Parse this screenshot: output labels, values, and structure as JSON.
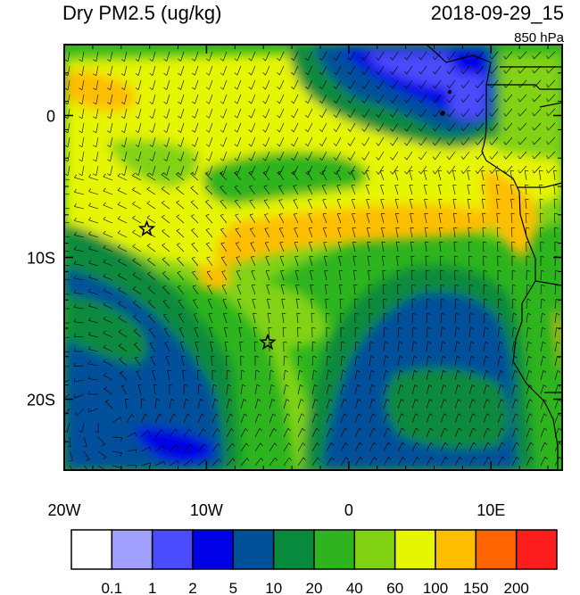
{
  "header": {
    "title": "Dry PM2.5 (ug/kg)",
    "datetime": "2018-09-29_15",
    "level": "850 hPa"
  },
  "map": {
    "lon_range": [
      -20,
      15
    ],
    "lat_range": [
      -25,
      5
    ],
    "x_ticks": [
      {
        "lon": -20,
        "label": "20W"
      },
      {
        "lon": -10,
        "label": "10W"
      },
      {
        "lon": 0,
        "label": "0"
      },
      {
        "lon": 10,
        "label": "10E"
      }
    ],
    "y_ticks": [
      {
        "lat": 0,
        "label": "0"
      },
      {
        "lat": -10,
        "label": "10S"
      },
      {
        "lat": -20,
        "label": "20S"
      }
    ],
    "markers": [
      {
        "name": "star-marker",
        "lon": -14.2,
        "lat": -8.0
      },
      {
        "name": "star-marker",
        "lon": -5.7,
        "lat": -16.0
      }
    ]
  },
  "colorbar": {
    "colors": [
      "#ffffff",
      "#a0a0ff",
      "#4b4bff",
      "#0000e6",
      "#00509a",
      "#078a3c",
      "#2db41e",
      "#82d214",
      "#e6f500",
      "#ffbe00",
      "#ff6400",
      "#ff1e1e"
    ],
    "labels": [
      "0.1",
      "1",
      "2",
      "5",
      "10",
      "20",
      "40",
      "60",
      "100",
      "150",
      "200"
    ]
  }
}
